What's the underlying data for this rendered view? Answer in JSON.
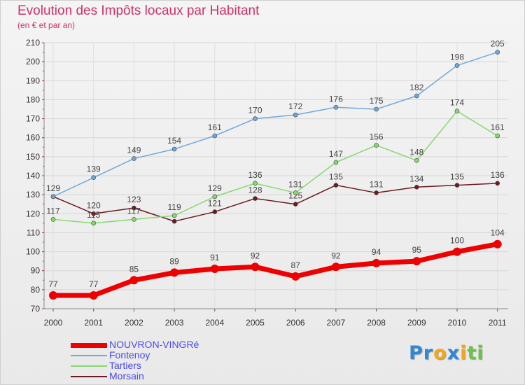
{
  "title": "Evolution des Impôts locaux par Habitant",
  "subtitle": "(en € et par an)",
  "logo": {
    "letters": [
      "P",
      "r",
      "o",
      "x",
      "i",
      "t",
      "i"
    ],
    "colors": [
      "#2f88d6",
      "#2f88d6",
      "#f2a61a",
      "#2f88d6",
      "#f2a61a",
      "#6cc24a",
      "#6cc24a"
    ]
  },
  "chart_data": {
    "type": "line",
    "title": "Evolution des Impôts locaux par Habitant",
    "ylim": [
      70,
      210
    ],
    "yticks": [
      70,
      80,
      90,
      100,
      110,
      120,
      130,
      140,
      150,
      160,
      170,
      180,
      190,
      200,
      210
    ],
    "x": [
      "2000",
      "2001",
      "2002",
      "2003",
      "2004",
      "2005",
      "2006",
      "2007",
      "2008",
      "2009",
      "2010",
      "2011"
    ],
    "grid": true,
    "legend_position": "bottom-left",
    "series": [
      {
        "name": "Morsain",
        "color": "#6b1b22",
        "values": [
          129,
          120,
          123,
          116,
          121,
          128,
          125,
          135,
          131,
          134,
          135,
          136
        ],
        "labels": [
          "",
          "120",
          "123",
          "",
          "121",
          "128",
          "125",
          "135",
          "131",
          "134",
          "135",
          "136"
        ]
      },
      {
        "name": "Tartiers",
        "color": "#88d86e",
        "values": [
          117,
          115,
          117,
          119,
          129,
          136,
          131,
          147,
          156,
          148,
          174,
          161
        ],
        "labels": [
          "117",
          "115",
          "117",
          "119",
          "129",
          "136",
          "131",
          "147",
          "156",
          "148",
          "174",
          "161"
        ]
      },
      {
        "name": "Fontenoy",
        "color": "#6fa8dc",
        "values": [
          129,
          139,
          149,
          154,
          161,
          170,
          172,
          176,
          175,
          182,
          198,
          205
        ],
        "labels": [
          "129",
          "139",
          "149",
          "154",
          "161",
          "170",
          "172",
          "176",
          "175",
          "182",
          "198",
          "205"
        ]
      },
      {
        "name": "NOUVRON-VINGRé",
        "color": "#ee0000",
        "values": [
          77,
          77,
          85,
          89,
          91,
          92,
          87,
          92,
          94,
          95,
          100,
          104
        ],
        "labels": [
          "77",
          "77",
          "85",
          "89",
          "91",
          "92",
          "87",
          "92",
          "94",
          "95",
          "100",
          "104"
        ]
      }
    ],
    "legend": [
      "NOUVRON-VINGRé",
      "Fontenoy",
      "Tartiers",
      "Morsain"
    ]
  }
}
